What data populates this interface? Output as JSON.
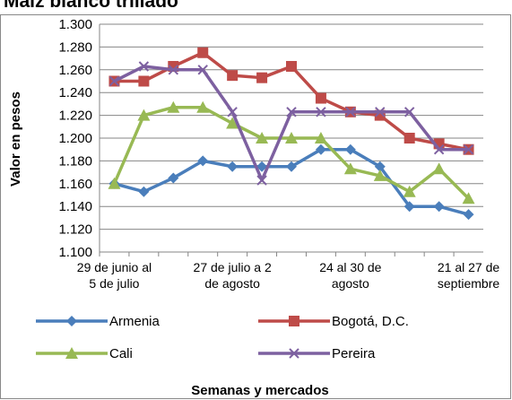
{
  "chart_data": {
    "type": "line",
    "title": "Maíz blanco trillado",
    "y_label": "Valor en pesos",
    "x_label": "Semanas y mercados",
    "categories": [
      "29 de junio al 5 de julio",
      null,
      null,
      null,
      "27 de julio a 2 de agosto",
      null,
      null,
      null,
      "24 al 30 de agosto",
      null,
      null,
      null,
      "21 al 27 de septiembre"
    ],
    "ylim": [
      1100,
      1300
    ],
    "yticks": [
      {
        "value": 1100,
        "label": "1.100"
      },
      {
        "value": 1120,
        "label": "1.120"
      },
      {
        "value": 1140,
        "label": "1.140"
      },
      {
        "value": 1160,
        "label": "1.160"
      },
      {
        "value": 1180,
        "label": "1.180"
      },
      {
        "value": 1200,
        "label": "1.200"
      },
      {
        "value": 1220,
        "label": "1.220"
      },
      {
        "value": 1240,
        "label": "1.240"
      },
      {
        "value": 1260,
        "label": "1.260"
      },
      {
        "value": 1280,
        "label": "1.280"
      },
      {
        "value": 1300,
        "label": "1.300"
      }
    ],
    "grid": true,
    "series": [
      {
        "name": "Armenia",
        "color": "#4a7ebb",
        "marker": "diamond",
        "values": [
          1160,
          1153,
          1165,
          1180,
          1175,
          1175,
          1175,
          1190,
          1190,
          1175,
          1140,
          1140,
          1133
        ]
      },
      {
        "name": "Bogotá, D.C.",
        "color": "#be4b48",
        "marker": "square",
        "values": [
          1250,
          1250,
          1263,
          1275,
          1255,
          1253,
          1263,
          1235,
          1223,
          1220,
          1200,
          1195,
          1190
        ]
      },
      {
        "name": "Cali",
        "color": "#98b954",
        "marker": "triangle",
        "values": [
          1160,
          1220,
          1227,
          1227,
          1213,
          1200,
          1200,
          1200,
          1173,
          1167,
          1153,
          1173,
          1147
        ]
      },
      {
        "name": "Pereira",
        "color": "#7d60a0",
        "marker": "x",
        "values": [
          1250,
          1263,
          1260,
          1260,
          1223,
          1163,
          1223,
          1223,
          1223,
          1223,
          1223,
          1190,
          1190
        ]
      }
    ]
  }
}
